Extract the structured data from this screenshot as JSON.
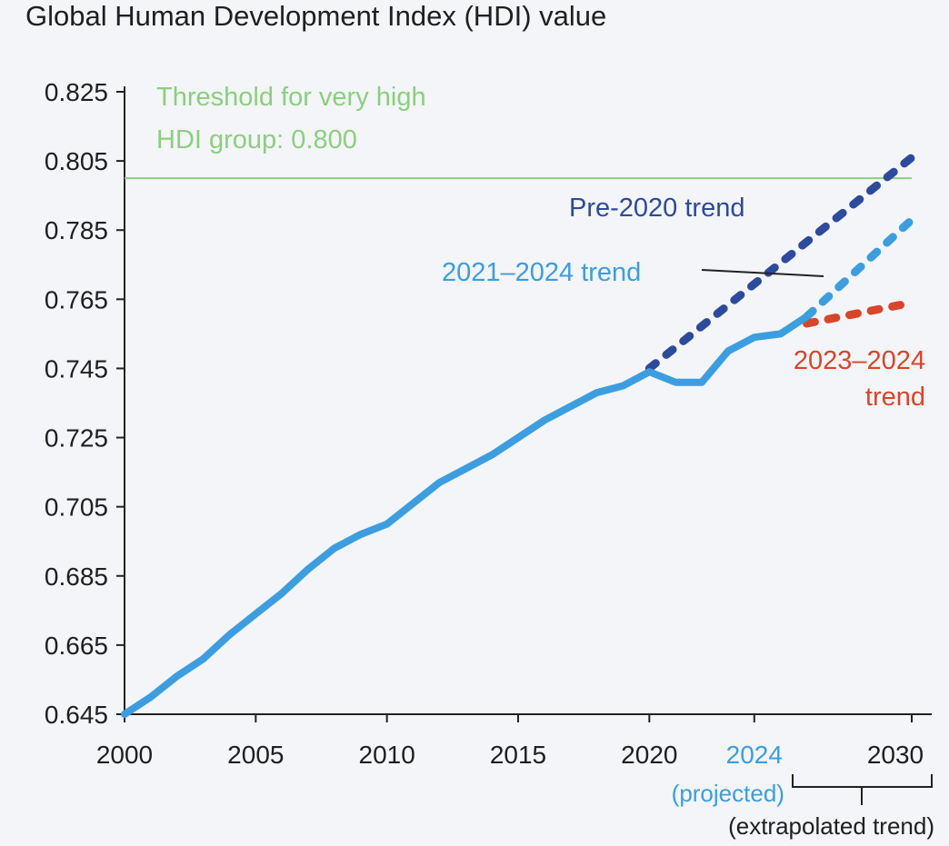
{
  "chart_data": {
    "type": "line",
    "title": "Global Human Development Index (HDI) value",
    "xlabel": "",
    "ylabel": "",
    "xlim": [
      2000,
      2030
    ],
    "ylim": [
      0.645,
      0.825
    ],
    "x_ticks": [
      {
        "value": 2000,
        "label": "2000"
      },
      {
        "value": 2005,
        "label": "2005"
      },
      {
        "value": 2010,
        "label": "2010"
      },
      {
        "value": 2015,
        "label": "2015"
      },
      {
        "value": 2020,
        "label": "2020"
      },
      {
        "value": 2024,
        "label": "2024"
      },
      {
        "value": 2030,
        "label": "2030"
      }
    ],
    "y_ticks": [
      {
        "value": 0.645,
        "label": "0.645"
      },
      {
        "value": 0.665,
        "label": "0.665"
      },
      {
        "value": 0.685,
        "label": "0.685"
      },
      {
        "value": 0.705,
        "label": "0.705"
      },
      {
        "value": 0.725,
        "label": "0.725"
      },
      {
        "value": 0.745,
        "label": "0.745"
      },
      {
        "value": 0.765,
        "label": "0.765"
      },
      {
        "value": 0.785,
        "label": "0.785"
      },
      {
        "value": 0.805,
        "label": "0.805"
      },
      {
        "value": 0.825,
        "label": "0.825"
      }
    ],
    "grid": false,
    "threshold": {
      "value": 0.8,
      "label_lines": [
        "Threshold for very high",
        "HDI group: 0.800"
      ],
      "color": "#8ccf7e"
    },
    "series": [
      {
        "key": "actual",
        "style": "solid",
        "color": "#3c9ee0",
        "points": [
          [
            2000,
            0.645
          ],
          [
            2001,
            0.65
          ],
          [
            2002,
            0.656
          ],
          [
            2003,
            0.661
          ],
          [
            2004,
            0.668
          ],
          [
            2005,
            0.674
          ],
          [
            2006,
            0.68
          ],
          [
            2007,
            0.687
          ],
          [
            2008,
            0.693
          ],
          [
            2009,
            0.697
          ],
          [
            2010,
            0.7
          ],
          [
            2011,
            0.706
          ],
          [
            2012,
            0.712
          ],
          [
            2013,
            0.716
          ],
          [
            2014,
            0.72
          ],
          [
            2015,
            0.725
          ],
          [
            2016,
            0.73
          ],
          [
            2017,
            0.734
          ],
          [
            2018,
            0.738
          ],
          [
            2019,
            0.74
          ],
          [
            2020,
            0.744
          ],
          [
            2021,
            0.741
          ],
          [
            2022,
            0.741
          ],
          [
            2023,
            0.75
          ],
          [
            2024,
            0.754
          ],
          [
            2025,
            0.755
          ],
          [
            2026,
            0.76
          ]
        ]
      },
      {
        "key": "pre2020",
        "name": "Pre-2020 trend",
        "style": "dotted",
        "color": "#2e4a9c",
        "points": [
          [
            2020,
            0.745
          ],
          [
            2030,
            0.806
          ]
        ]
      },
      {
        "key": "trend2124",
        "name": "2021–2024 trend",
        "style": "dotted",
        "color": "#3c9ee0",
        "points": [
          [
            2026,
            0.76
          ],
          [
            2030,
            0.788
          ]
        ]
      },
      {
        "key": "trend2324",
        "name_lines": [
          "2023–2024",
          "trend"
        ],
        "style": "dotted",
        "color": "#d9452b",
        "points": [
          [
            2026,
            0.758
          ],
          [
            2030,
            0.764
          ]
        ]
      }
    ],
    "annotations": {
      "projected_label": "(projected)",
      "extrapolated_label": "(extrapolated trend)",
      "highlight_year_color": "#3c9ee0"
    }
  }
}
